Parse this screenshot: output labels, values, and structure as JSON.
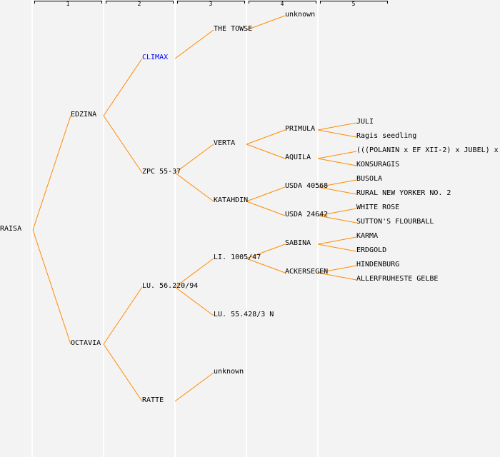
{
  "generations": [
    "1",
    "2",
    "3",
    "4",
    "5"
  ],
  "colors": {
    "line": "#ff8c00",
    "highlight": "#0000ff",
    "text": "#000000"
  },
  "tree": {
    "name": "RAISA",
    "parents": [
      {
        "name": "EDZINA",
        "parents": [
          {
            "name": "CLIMAX",
            "highlight": true,
            "parents": [
              {
                "name": "THE TOWSE",
                "parents": [
                  {
                    "name": "unknown",
                    "parents": []
                  },
                  null
                ]
              },
              null
            ]
          },
          {
            "name": "ZPC 55-37",
            "parents": [
              {
                "name": "VERTA",
                "parents": [
                  {
                    "name": "PRIMULA",
                    "parents": [
                      {
                        "name": "JULI"
                      },
                      {
                        "name": "Ragis seedling"
                      }
                    ]
                  },
                  {
                    "name": "AQUILA",
                    "parents": [
                      {
                        "name": "(((POLANIN x EF XII-2) x JUBEL) x"
                      },
                      {
                        "name": "KONSURAGIS"
                      }
                    ]
                  }
                ]
              },
              {
                "name": "KATAHDIN",
                "parents": [
                  {
                    "name": "USDA 40568",
                    "parents": [
                      {
                        "name": "BUSOLA"
                      },
                      {
                        "name": "RURAL NEW YORKER NO. 2"
                      }
                    ]
                  },
                  {
                    "name": "USDA 24642",
                    "parents": [
                      {
                        "name": "WHITE ROSE"
                      },
                      {
                        "name": "SUTTON'S FLOURBALL"
                      }
                    ]
                  }
                ]
              }
            ]
          }
        ]
      },
      {
        "name": "OCTAVIA",
        "parents": [
          {
            "name": "LU. 56.220/94",
            "parents": [
              {
                "name": "LI. 1005/47",
                "parents": [
                  {
                    "name": "SABINA",
                    "parents": [
                      {
                        "name": "KARMA"
                      },
                      {
                        "name": "ERDGOLD"
                      }
                    ]
                  },
                  {
                    "name": "ACKERSEGEN",
                    "parents": [
                      {
                        "name": "HINDENBURG"
                      },
                      {
                        "name": "ALLERFRUHESTE GELBE"
                      }
                    ]
                  }
                ]
              },
              {
                "name": "LU. 55.428/3 N",
                "parents": []
              }
            ]
          },
          {
            "name": "RATTE",
            "parents": [
              {
                "name": "unknown",
                "parents": []
              },
              null
            ]
          }
        ]
      }
    ]
  }
}
